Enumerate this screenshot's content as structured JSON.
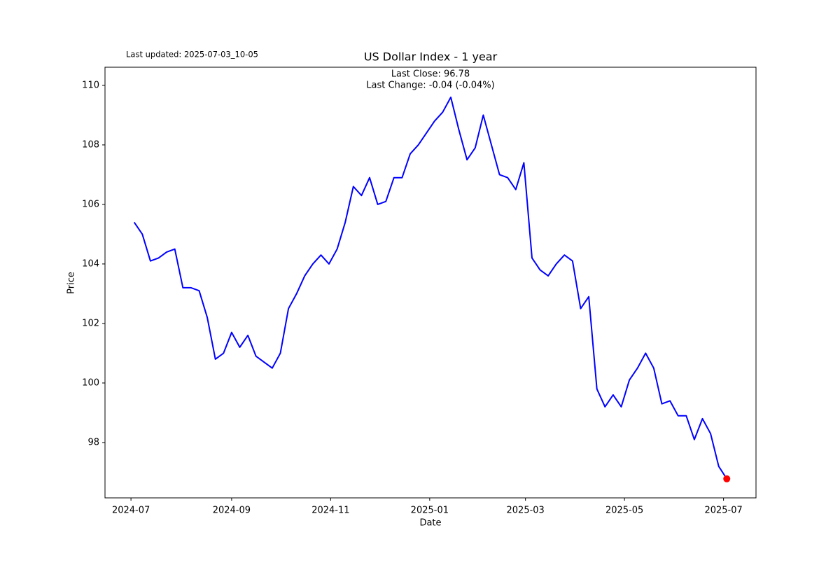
{
  "chart_data": {
    "type": "line",
    "title": "US Dollar Index - 1 year",
    "annotations": {
      "updated": "Last updated: 2025-07-03_10-05",
      "close": "Last Close: 96.78",
      "change": "Last Change: -0.04 (-0.04%)"
    },
    "x_label": "Date",
    "y_label": "Price",
    "x": [
      "2024-07-03",
      "2024-07-08",
      "2024-07-13",
      "2024-07-18",
      "2024-07-23",
      "2024-07-28",
      "2024-08-02",
      "2024-08-07",
      "2024-08-12",
      "2024-08-17",
      "2024-08-22",
      "2024-08-27",
      "2024-09-01",
      "2024-09-06",
      "2024-09-11",
      "2024-09-16",
      "2024-09-21",
      "2024-09-26",
      "2024-10-01",
      "2024-10-06",
      "2024-10-11",
      "2024-10-16",
      "2024-10-21",
      "2024-10-26",
      "2024-10-31",
      "2024-11-05",
      "2024-11-10",
      "2024-11-15",
      "2024-11-20",
      "2024-11-25",
      "2024-11-30",
      "2024-12-05",
      "2024-12-10",
      "2024-12-15",
      "2024-12-20",
      "2024-12-25",
      "2024-12-30",
      "2025-01-04",
      "2025-01-09",
      "2025-01-14",
      "2025-01-19",
      "2025-01-24",
      "2025-01-29",
      "2025-02-03",
      "2025-02-08",
      "2025-02-13",
      "2025-02-18",
      "2025-02-23",
      "2025-02-28",
      "2025-03-05",
      "2025-03-10",
      "2025-03-15",
      "2025-03-20",
      "2025-03-25",
      "2025-03-30",
      "2025-04-04",
      "2025-04-09",
      "2025-04-14",
      "2025-04-19",
      "2025-04-24",
      "2025-04-29",
      "2025-05-04",
      "2025-05-09",
      "2025-05-14",
      "2025-05-19",
      "2025-05-24",
      "2025-05-29",
      "2025-06-03",
      "2025-06-08",
      "2025-06-13",
      "2025-06-18",
      "2025-06-23",
      "2025-06-28",
      "2025-07-03"
    ],
    "series": [
      {
        "name": "US Dollar Index",
        "color": "#0000ff",
        "last_marker_color": "#ff0000",
        "values": [
          105.4,
          105.0,
          104.1,
          104.2,
          104.4,
          104.5,
          103.2,
          103.2,
          103.1,
          102.2,
          100.8,
          101.0,
          101.7,
          101.2,
          101.6,
          100.9,
          100.7,
          100.5,
          101.0,
          102.5,
          103.0,
          103.6,
          104.0,
          104.3,
          104.0,
          104.5,
          105.4,
          106.6,
          106.3,
          106.9,
          106.0,
          106.1,
          106.9,
          106.9,
          107.7,
          108.0,
          108.4,
          108.8,
          109.1,
          109.6,
          108.5,
          107.5,
          107.9,
          109.0,
          108.0,
          107.0,
          106.9,
          106.5,
          107.4,
          104.2,
          103.8,
          103.6,
          104.0,
          104.3,
          104.1,
          102.5,
          102.9,
          99.8,
          99.2,
          99.6,
          99.2,
          100.1,
          100.5,
          101.0,
          100.5,
          99.3,
          99.4,
          98.9,
          98.9,
          98.1,
          98.8,
          98.3,
          97.2,
          96.78
        ]
      }
    ],
    "xlim": [
      "2024-06-15",
      "2025-07-21"
    ],
    "xticks": [
      "2024-07",
      "2024-09",
      "2024-11",
      "2025-01",
      "2025-03",
      "2025-05",
      "2025-07"
    ],
    "ylim": [
      96.14,
      110.61
    ],
    "yticks": [
      98,
      100,
      102,
      104,
      106,
      108,
      110
    ],
    "grid": false
  }
}
